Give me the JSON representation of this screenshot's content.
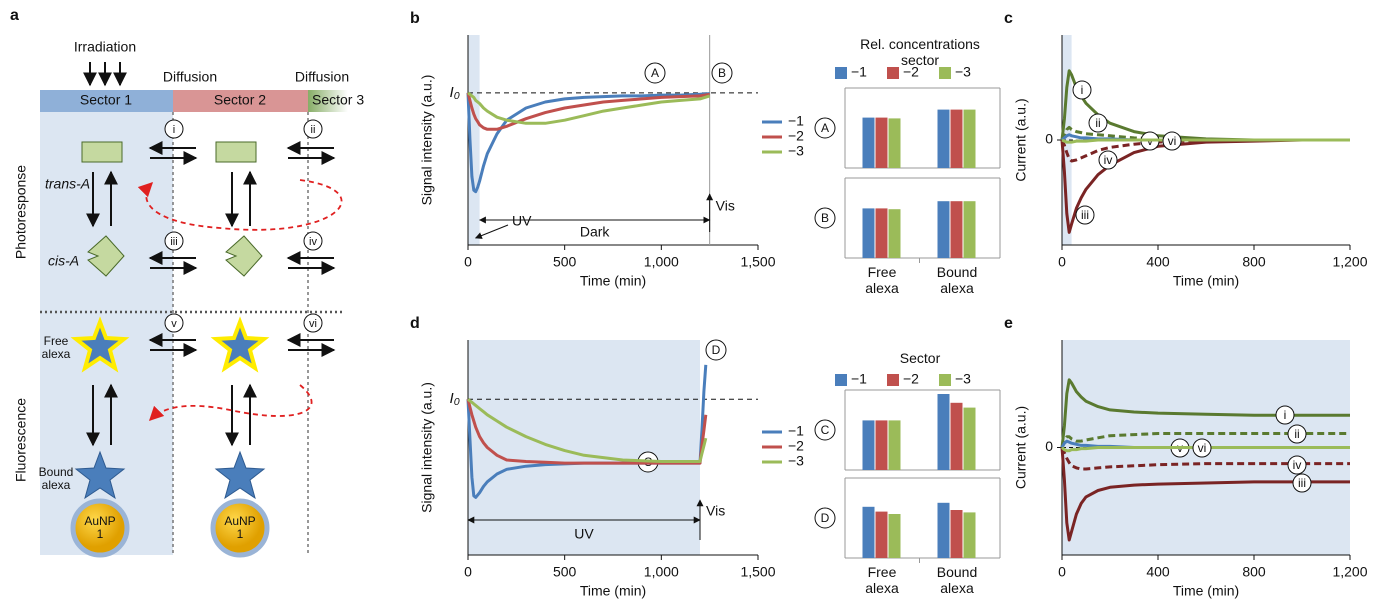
{
  "diagram": {
    "panel_label": "a",
    "irradiation": "Irradiation",
    "diffusion_labels": [
      "Diffusion",
      "Diffusion"
    ],
    "sectors": [
      "Sector 1",
      "Sector 2",
      "Sector 3"
    ],
    "row_labels": [
      "Photoresponse",
      "Fluorescence"
    ],
    "species": [
      "trans-A",
      "cis-A",
      "Free alexa",
      "Bound alexa"
    ],
    "nanoparticles": [
      "AuNP 1",
      "AuNP 1"
    ],
    "processes": [
      "i",
      "ii",
      "iii",
      "iv",
      "v",
      "vi"
    ]
  },
  "chart_data": [
    {
      "type": "line",
      "panel_label": "b",
      "x_label": "Time (min)",
      "y_label": "Signal intensity (a.u.)",
      "x": [
        0,
        10,
        20,
        30,
        40,
        50,
        60,
        80,
        100,
        150,
        200,
        300,
        400,
        500,
        600,
        700,
        800,
        900,
        1000,
        1100,
        1200,
        1250
      ],
      "series": [
        {
          "name": "−1",
          "color": "#4a7ebb",
          "values": [
            1,
            0.7,
            0.45,
            0.36,
            0.35,
            0.38,
            0.42,
            0.52,
            0.6,
            0.73,
            0.82,
            0.9,
            0.94,
            0.96,
            0.97,
            0.975,
            0.98,
            0.98,
            0.985,
            0.985,
            0.99,
            0.995
          ]
        },
        {
          "name": "−2",
          "color": "#c0504d",
          "values": [
            1,
            0.95,
            0.9,
            0.86,
            0.83,
            0.81,
            0.79,
            0.77,
            0.76,
            0.76,
            0.78,
            0.83,
            0.87,
            0.9,
            0.92,
            0.94,
            0.95,
            0.96,
            0.97,
            0.975,
            0.98,
            0.99
          ]
        },
        {
          "name": "−3",
          "color": "#9bbb59",
          "values": [
            1,
            0.99,
            0.98,
            0.97,
            0.95,
            0.94,
            0.93,
            0.9,
            0.88,
            0.84,
            0.82,
            0.8,
            0.8,
            0.82,
            0.85,
            0.88,
            0.9,
            0.92,
            0.94,
            0.95,
            0.96,
            0.98
          ]
        }
      ],
      "xlim": [
        0,
        1500
      ],
      "xticks": [
        0,
        500,
        {
          "value": 1000,
          "label": "1,000"
        },
        {
          "value": 1500,
          "label": "1,500"
        }
      ],
      "ylim": [
        0,
        1.38
      ],
      "reference_line": {
        "value": 1,
        "label": "I₀"
      },
      "shaded_xlim": [
        0,
        60
      ],
      "vis_time": 1250,
      "annotations": {
        "uv": "UV",
        "dark": "Dark",
        "vis": "Vis",
        "markers": [
          "A",
          "B"
        ]
      },
      "legend": true
    },
    {
      "type": "bar",
      "legend_title": "Rel. concentrations sector",
      "categories": [
        "Free alexa",
        "Bound alexa"
      ],
      "series": [
        {
          "name": "−1",
          "color": "#4a7ebb"
        },
        {
          "name": "−2",
          "color": "#c0504d"
        },
        {
          "name": "−3",
          "color": "#9bbb59"
        }
      ],
      "ylim": [
        0,
        1
      ],
      "panels": [
        {
          "label": "A",
          "values": [
            [
              0.63,
              0.73
            ],
            [
              0.63,
              0.73
            ],
            [
              0.62,
              0.73
            ]
          ]
        },
        {
          "label": "B",
          "values": [
            [
              0.62,
              0.71
            ],
            [
              0.62,
              0.71
            ],
            [
              0.61,
              0.71
            ]
          ]
        }
      ]
    },
    {
      "type": "line",
      "panel_label": "c",
      "x_label": "Time (min)",
      "y_label": "Current (a.u.)",
      "x": [
        0,
        10,
        20,
        30,
        40,
        60,
        80,
        100,
        150,
        200,
        300,
        400,
        600,
        800,
        1000,
        1200
      ],
      "series": [
        {
          "name": "i",
          "color": "#5a7a30",
          "dashed": false,
          "values": [
            0,
            0.2,
            0.5,
            0.66,
            0.62,
            0.5,
            0.42,
            0.35,
            0.24,
            0.16,
            0.08,
            0.04,
            0.01,
            0,
            0,
            0
          ]
        },
        {
          "name": "ii",
          "color": "#5a7a30",
          "dashed": true,
          "values": [
            0,
            0.05,
            0.1,
            0.12,
            0.1,
            0.08,
            0.07,
            0.06,
            0.05,
            0.04,
            0.02,
            0.01,
            0,
            0,
            0,
            0
          ]
        },
        {
          "name": "iii",
          "color": "#7a2424",
          "dashed": false,
          "values": [
            0,
            -0.3,
            -0.7,
            -0.88,
            -0.8,
            -0.65,
            -0.55,
            -0.47,
            -0.33,
            -0.24,
            -0.12,
            -0.06,
            -0.02,
            -0.01,
            0,
            0
          ]
        },
        {
          "name": "iv",
          "color": "#7a2424",
          "dashed": true,
          "values": [
            0,
            -0.05,
            -0.12,
            -0.18,
            -0.2,
            -0.19,
            -0.17,
            -0.15,
            -0.1,
            -0.07,
            -0.04,
            -0.02,
            0,
            0,
            0,
            0
          ]
        },
        {
          "name": "v",
          "color": "#4a7ebb",
          "dashed": false,
          "values": [
            0,
            0.02,
            0.04,
            0.05,
            0.04,
            0.03,
            0.02,
            0.02,
            0.01,
            0.01,
            0,
            0,
            0,
            0,
            0,
            0
          ]
        },
        {
          "name": "vi",
          "color": "#9bbb59",
          "dashed": false,
          "values": [
            0,
            -0.01,
            -0.02,
            -0.02,
            -0.02,
            -0.01,
            -0.01,
            -0.01,
            0,
            0,
            0,
            0,
            0,
            0,
            0,
            0
          ]
        }
      ],
      "xlim": [
        0,
        1200
      ],
      "xticks": [
        0,
        400,
        800,
        {
          "value": 1200,
          "label": "1,200"
        }
      ],
      "ylim": [
        -1,
        1
      ],
      "yticks": [
        0
      ],
      "grid": true,
      "shaded_xlim": [
        0,
        40
      ]
    },
    {
      "type": "line",
      "panel_label": "d",
      "x_label": "Time (min)",
      "y_label": "Signal intensity (a.u.)",
      "x": [
        0,
        10,
        20,
        30,
        40,
        60,
        80,
        100,
        150,
        200,
        300,
        400,
        500,
        600,
        800,
        1000,
        1200,
        1210,
        1220,
        1230
      ],
      "series": [
        {
          "name": "−1",
          "color": "#4a7ebb",
          "values": [
            1,
            0.75,
            0.5,
            0.38,
            0.37,
            0.4,
            0.44,
            0.47,
            0.52,
            0.55,
            0.57,
            0.58,
            0.585,
            0.59,
            0.59,
            0.59,
            0.59,
            0.8,
            1.05,
            1.22
          ]
        },
        {
          "name": "−2",
          "color": "#c0504d",
          "values": [
            1,
            0.95,
            0.9,
            0.86,
            0.82,
            0.76,
            0.72,
            0.69,
            0.64,
            0.61,
            0.6,
            0.595,
            0.59,
            0.59,
            0.59,
            0.59,
            0.59,
            0.7,
            0.8,
            0.9
          ]
        },
        {
          "name": "−3",
          "color": "#9bbb59",
          "values": [
            1,
            0.99,
            0.98,
            0.97,
            0.96,
            0.94,
            0.92,
            0.9,
            0.86,
            0.82,
            0.76,
            0.71,
            0.67,
            0.64,
            0.61,
            0.6,
            0.6,
            0.65,
            0.7,
            0.75
          ]
        }
      ],
      "xlim": [
        0,
        1500
      ],
      "xticks": [
        0,
        500,
        {
          "value": 1000,
          "label": "1,000"
        },
        {
          "value": 1500,
          "label": "1,500"
        }
      ],
      "ylim": [
        0,
        1.38
      ],
      "reference_line": {
        "value": 1,
        "label": "I₀"
      },
      "shaded_xlim": [
        0,
        1200
      ],
      "vis_time": 1200,
      "annotations": {
        "uv": "UV",
        "vis": "Vis",
        "markers": [
          "C",
          "D"
        ]
      },
      "legend": true
    },
    {
      "type": "bar",
      "legend_title": "Sector",
      "categories": [
        "Free alexa",
        "Bound alexa"
      ],
      "series": [
        {
          "name": "−1",
          "color": "#4a7ebb"
        },
        {
          "name": "−2",
          "color": "#c0504d"
        },
        {
          "name": "−3",
          "color": "#9bbb59"
        }
      ],
      "ylim": [
        0,
        1
      ],
      "panels": [
        {
          "label": "C",
          "values": [
            [
              0.62,
              0.95
            ],
            [
              0.62,
              0.84
            ],
            [
              0.62,
              0.78
            ]
          ]
        },
        {
          "label": "D",
          "values": [
            [
              0.64,
              0.69
            ],
            [
              0.58,
              0.6
            ],
            [
              0.55,
              0.57
            ]
          ]
        }
      ]
    },
    {
      "type": "line",
      "panel_label": "e",
      "x_label": "Time (min)",
      "y_label": "Current (a.u.)",
      "x": [
        0,
        10,
        20,
        30,
        40,
        60,
        80,
        100,
        150,
        200,
        300,
        400,
        600,
        800,
        1000,
        1200
      ],
      "series": [
        {
          "name": "i",
          "color": "#5a7a30",
          "dashed": false,
          "values": [
            0,
            0.2,
            0.5,
            0.63,
            0.6,
            0.52,
            0.47,
            0.43,
            0.38,
            0.35,
            0.33,
            0.32,
            0.31,
            0.3,
            0.3,
            0.3
          ]
        },
        {
          "name": "ii",
          "color": "#5a7a30",
          "dashed": true,
          "values": [
            0,
            0.06,
            0.1,
            0.1,
            0.08,
            0.06,
            0.06,
            0.07,
            0.09,
            0.11,
            0.12,
            0.13,
            0.13,
            0.13,
            0.13,
            0.13
          ]
        },
        {
          "name": "iii",
          "color": "#7a2424",
          "dashed": false,
          "values": [
            0,
            -0.3,
            -0.7,
            -0.86,
            -0.78,
            -0.62,
            -0.52,
            -0.46,
            -0.4,
            -0.37,
            -0.35,
            -0.34,
            -0.33,
            -0.32,
            -0.32,
            -0.32
          ]
        },
        {
          "name": "iv",
          "color": "#7a2424",
          "dashed": true,
          "values": [
            0,
            -0.05,
            -0.1,
            -0.14,
            -0.17,
            -0.19,
            -0.2,
            -0.2,
            -0.19,
            -0.18,
            -0.17,
            -0.16,
            -0.15,
            -0.15,
            -0.15,
            -0.15
          ]
        },
        {
          "name": "v",
          "color": "#4a7ebb",
          "dashed": false,
          "values": [
            0,
            0.04,
            0.06,
            0.05,
            0.04,
            0.03,
            0.02,
            0.02,
            0.01,
            0.01,
            0,
            0,
            0,
            0,
            0,
            0
          ]
        },
        {
          "name": "vi",
          "color": "#9bbb59",
          "dashed": false,
          "values": [
            0,
            -0.02,
            -0.03,
            -0.03,
            -0.02,
            -0.02,
            -0.01,
            -0.01,
            0,
            0,
            0,
            0,
            0,
            0,
            0,
            0
          ]
        }
      ],
      "xlim": [
        0,
        1200
      ],
      "xticks": [
        0,
        400,
        800,
        {
          "value": 1200,
          "label": "1,200"
        }
      ],
      "ylim": [
        -1,
        1
      ],
      "yticks": [
        0
      ],
      "grid": true,
      "shaded_xlim": [
        0,
        1200
      ]
    }
  ]
}
